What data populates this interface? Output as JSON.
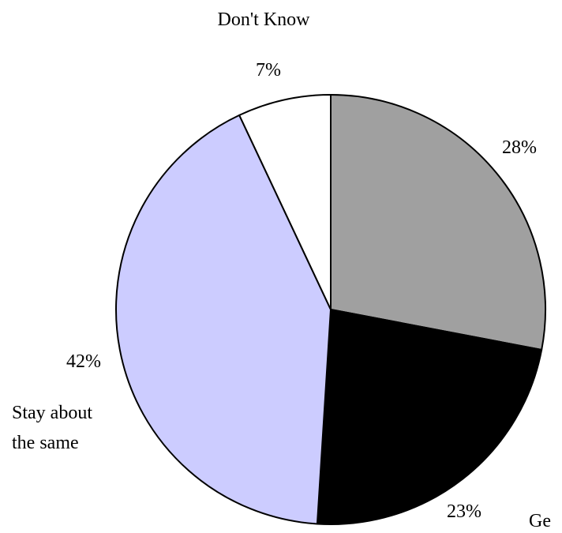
{
  "chart_data": {
    "type": "pie",
    "start_angle_deg": 0,
    "direction": "clockwise",
    "slices": [
      {
        "label": "",
        "value": 28,
        "value_label": "28%",
        "color": "#a0a0a0"
      },
      {
        "label": "Ge",
        "value": 23,
        "value_label": "23%",
        "color": "#000000"
      },
      {
        "label": "Stay about the same",
        "value": 42,
        "value_label": "42%",
        "color": "#ccccff"
      },
      {
        "label": "Don't Know",
        "value": 7,
        "value_label": "7%",
        "color": "#ffffff"
      }
    ],
    "category_labels": {
      "dont_know": "Don't Know",
      "stay_line1": "Stay about",
      "stay_line2": "the same",
      "ge": "Ge"
    }
  }
}
